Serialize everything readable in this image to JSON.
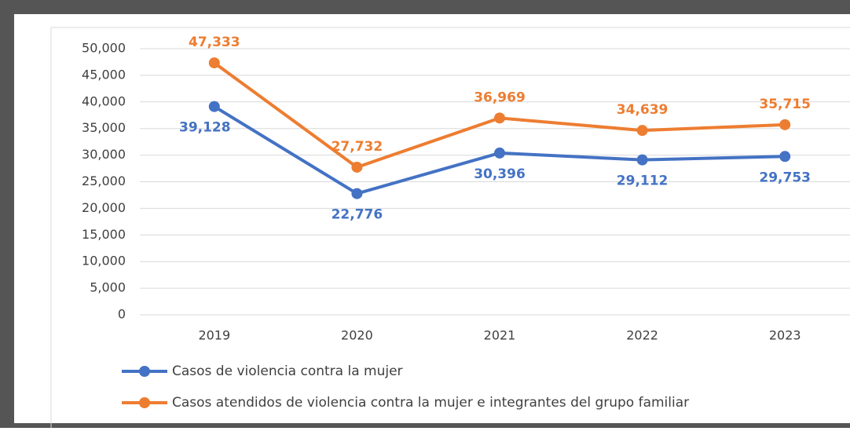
{
  "chart_data": {
    "type": "line",
    "categories": [
      "2019",
      "2020",
      "2021",
      "2022",
      "2023"
    ],
    "series": [
      {
        "name": "Casos de violencia contra la  mujer",
        "color": "#4472c4",
        "values": [
          39128,
          22776,
          30396,
          29112,
          29753
        ],
        "value_labels": [
          "39,128",
          "22,776",
          "30,396",
          "29,112",
          "29,753"
        ]
      },
      {
        "name": "Casos atendidos de violencia contra la mujer e integrantes del grupo familiar",
        "color": "#ed7d31",
        "values": [
          47333,
          27732,
          36969,
          34639,
          35715
        ],
        "value_labels": [
          "47,333",
          "27,732",
          "36,969",
          "34,639",
          "35,715"
        ]
      }
    ],
    "ylim": [
      0,
      50000
    ],
    "yticks": [
      0,
      {
        "value": 5000,
        "label": "5,000"
      },
      {
        "value": 10000,
        "label": "10,000"
      },
      {
        "value": 15000,
        "label": "15,000"
      },
      {
        "value": 20000,
        "label": "20,000"
      },
      {
        "value": 25000,
        "label": "25,000"
      },
      {
        "value": 30000,
        "label": "30,000"
      },
      {
        "value": 35000,
        "label": "35,000"
      },
      {
        "value": 40000,
        "label": "40,000"
      },
      {
        "value": 45000,
        "label": "45,000"
      },
      {
        "value": 50000,
        "label": "50,000"
      }
    ],
    "grid": true,
    "legend": "bottom"
  }
}
